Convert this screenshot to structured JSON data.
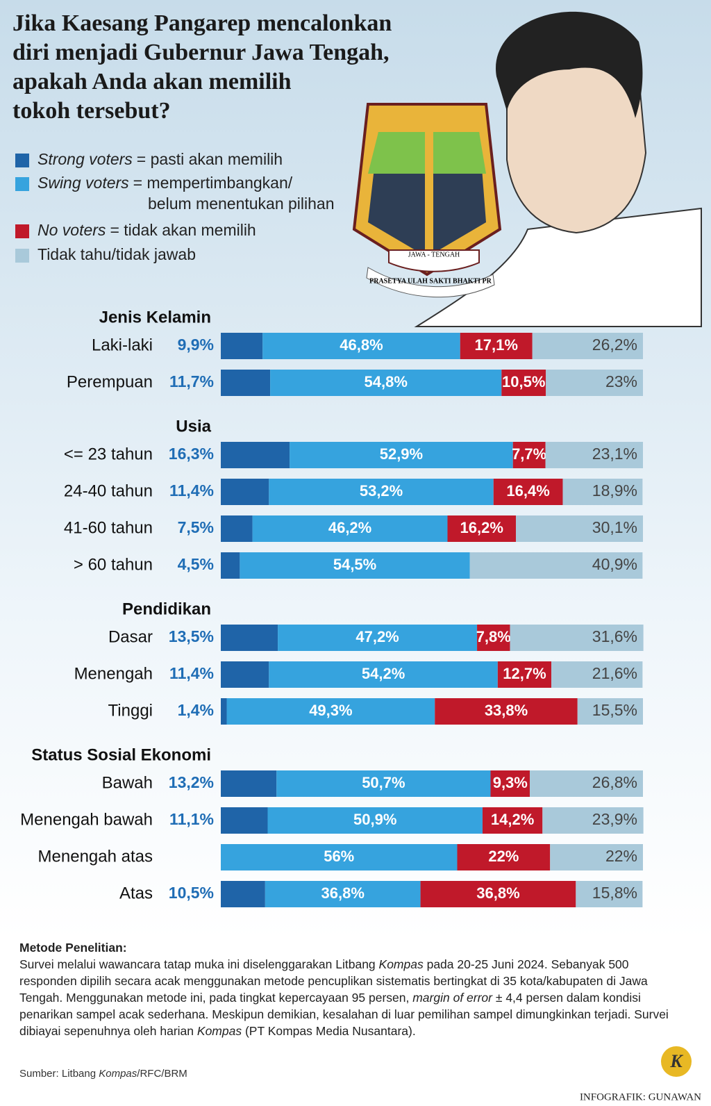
{
  "title": [
    "Jika Kaesang Pangarep mencalonkan",
    "diri menjadi Gubernur Jawa Tengah,",
    "apakah Anda akan memilih",
    "tokoh tersebut?"
  ],
  "emblem": {
    "name": "JAWA - TENGAH",
    "motto": "PRASETYA ULAH SAKTI BHAKTI PR"
  },
  "legend": [
    {
      "term": "Strong voters",
      "definition": [
        "= pasti akan memilih"
      ],
      "color": "#1f64a8"
    },
    {
      "term": "Swing voters",
      "definition": [
        "= mempertimbangkan/",
        "belum menentukan pilihan"
      ],
      "color": "#36a3de"
    },
    {
      "term": "No voters",
      "definition": [
        "= tidak akan memilih"
      ],
      "color": "#c0192a"
    },
    {
      "definition": [
        "Tidak tahu/tidak jawab"
      ],
      "color": "#a9c9da"
    }
  ],
  "chart_data": [
    {
      "type": "bar",
      "title": "Jenis Kelamin",
      "xlim": [
        0,
        100
      ],
      "categories": [
        "Laki-laki",
        "Perempuan"
      ],
      "series": [
        {
          "values": [
            9.9,
            11.7
          ],
          "value_labels": [
            "9,9%",
            "11,7%"
          ]
        },
        {
          "values": [
            46.8,
            54.8
          ],
          "value_labels": [
            "46,8%",
            "54,8%"
          ]
        },
        {
          "values": [
            17.1,
            10.5
          ],
          "value_labels": [
            "17,1%",
            "10,5%"
          ]
        },
        {
          "values": [
            26.2,
            23
          ],
          "value_labels": [
            "26,2%",
            "23%"
          ]
        }
      ]
    },
    {
      "type": "bar",
      "title": "Usia",
      "xlim": [
        0,
        100
      ],
      "categories": [
        "<= 23 tahun",
        "24-40 tahun",
        "41-60 tahun",
        "> 60 tahun"
      ],
      "series": [
        {
          "values": [
            16.3,
            11.4,
            7.5,
            4.5
          ],
          "value_labels": [
            "16,3%",
            "11,4%",
            "7,5%",
            "4,5%"
          ]
        },
        {
          "values": [
            52.9,
            53.2,
            46.2,
            54.5
          ],
          "value_labels": [
            "52,9%",
            "53,2%",
            "46,2%",
            "54,5%"
          ]
        },
        {
          "values": [
            7.7,
            16.4,
            16.2,
            null
          ],
          "value_labels": [
            "7,7%",
            "16,4%",
            "16,2%",
            null
          ]
        },
        {
          "values": [
            23.1,
            18.9,
            30.1,
            40.9
          ],
          "value_labels": [
            "23,1%",
            "18,9%",
            "30,1%",
            "40,9%"
          ]
        }
      ]
    },
    {
      "type": "bar",
      "title": "Pendidikan",
      "xlim": [
        0,
        100
      ],
      "categories": [
        "Dasar",
        "Menengah",
        "Tinggi"
      ],
      "series": [
        {
          "values": [
            13.5,
            11.4,
            1.4
          ],
          "value_labels": [
            "13,5%",
            "11,4%",
            "1,4%"
          ]
        },
        {
          "values": [
            47.2,
            54.2,
            49.3
          ],
          "value_labels": [
            "47,2%",
            "54,2%",
            "49,3%"
          ]
        },
        {
          "values": [
            7.8,
            12.7,
            33.8
          ],
          "value_labels": [
            "7,8%",
            "12,7%",
            "33,8%"
          ]
        },
        {
          "values": [
            31.6,
            21.6,
            15.5
          ],
          "value_labels": [
            "31,6%",
            "21,6%",
            "15,5%"
          ]
        }
      ]
    },
    {
      "type": "bar",
      "title": "Status Sosial Ekonomi",
      "xlim": [
        0,
        100
      ],
      "categories": [
        "Bawah",
        "Menengah bawah",
        "Menengah atas",
        "Atas"
      ],
      "series": [
        {
          "values": [
            13.2,
            11.1,
            null,
            10.5
          ],
          "value_labels": [
            "13,2%",
            "11,1%",
            null,
            "10,5%"
          ]
        },
        {
          "values": [
            50.7,
            50.9,
            56,
            36.8
          ],
          "value_labels": [
            "50,7%",
            "50,9%",
            "56%",
            "36,8%"
          ]
        },
        {
          "values": [
            9.3,
            14.2,
            22,
            36.8
          ],
          "value_labels": [
            "9,3%",
            "14,2%",
            "22%",
            "36,8%"
          ]
        },
        {
          "values": [
            26.8,
            23.9,
            22,
            15.8
          ],
          "value_labels": [
            "26,8%",
            "23,9%",
            "22%",
            "15,8%"
          ]
        }
      ]
    }
  ],
  "methodology": {
    "heading": "Metode Penelitian:",
    "text": [
      {
        "text": "Survei melalui wawancara tatap muka ini diselenggarakan Litbang "
      },
      {
        "text": "Kompas",
        "italic": true
      },
      {
        "text": " pada 20-25 Juni 2024. Sebanyak 500 responden dipilih secara acak menggunakan metode pencuplikan sistematis bertingkat di 35 kota/kabupaten di Jawa Tengah. Menggunakan metode ini, pada tingkat kepercayaan 95 persen, "
      },
      {
        "text": "margin of error",
        "italic": true
      },
      {
        "text": " ± 4,4 persen dalam kondisi penarikan sampel acak sederhana. Meskipun demikian, kesalahan di luar pemilihan sampel dimungkinkan terjadi. Survei dibiayai sepenuhnya oleh harian "
      },
      {
        "text": "Kompas",
        "italic": true
      },
      {
        "text": " (PT Kompas Media Nusantara)."
      }
    ]
  },
  "source": [
    {
      "text": "Sumber: Litbang "
    },
    {
      "text": "Kompas",
      "italic": true
    },
    {
      "text": "/RFC/BRM"
    }
  ],
  "logo": "K",
  "credit": "INFOGRAFIK: GUNAWAN"
}
